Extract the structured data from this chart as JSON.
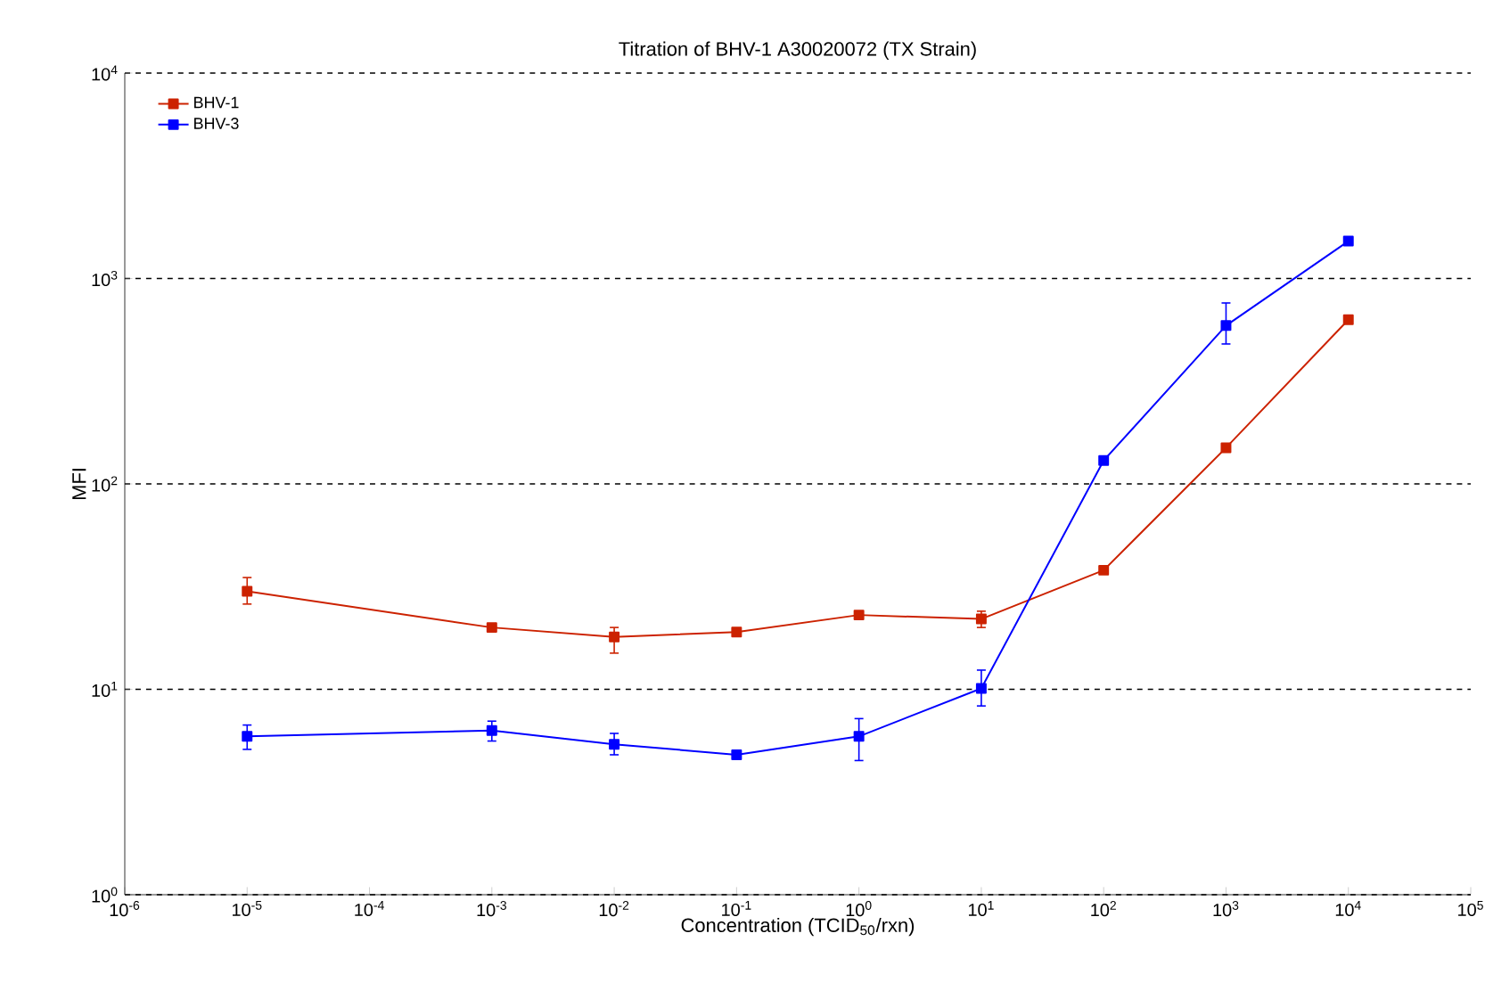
{
  "chart_data": {
    "type": "line",
    "title": "Titration of BHV-1 A30020072 (TX Strain)",
    "xlabel": "Concentration (TCID$_{50}$/rxn)",
    "ylabel": "MFI",
    "log": "xy",
    "grid": "y",
    "legend": "top left",
    "marker": "square",
    "line_style": "solid",
    "xlim": [
      1e-06,
      100000.0
    ],
    "ylim": [
      1,
      10000
    ],
    "xticks": [
      {
        "value": 1e-06,
        "label": "10$^{-6}$"
      },
      {
        "value": 1e-05,
        "label": "10$^{-5}$"
      },
      {
        "value": 0.0001,
        "label": "10$^{-4}$"
      },
      {
        "value": 0.001,
        "label": "10$^{-3}$"
      },
      {
        "value": 0.01,
        "label": "10$^{-2}$"
      },
      {
        "value": 0.1,
        "label": "10$^{-1}$"
      },
      {
        "value": 1,
        "label": "10$^{0}$"
      },
      {
        "value": 10,
        "label": "10$^{1}$"
      },
      {
        "value": 100,
        "label": "10$^{2}$"
      },
      {
        "value": 1000,
        "label": "10$^{3}$"
      },
      {
        "value": 10000,
        "label": "10$^{4}$"
      },
      {
        "value": 100000,
        "label": "10$^{5}$"
      }
    ],
    "yticks": [
      {
        "value": 1,
        "label": "10$^{0}$"
      },
      {
        "value": 10,
        "label": "10$^{1}$"
      },
      {
        "value": 100,
        "label": "10$^{2}$"
      },
      {
        "value": 1000,
        "label": "10$^{3}$"
      },
      {
        "value": 10000,
        "label": "10$^{4}$"
      }
    ],
    "x": [
      1e-05,
      0.001,
      0.01,
      0.1,
      1,
      10,
      100,
      1000,
      10000
    ],
    "series": [
      {
        "name": "BHV-1",
        "color": "#cc2200",
        "values": [
          30,
          20,
          18,
          19,
          23,
          22,
          38,
          150,
          630
        ],
        "errors": [
          [
            26,
            35
          ],
          null,
          [
            15,
            20
          ],
          null,
          null,
          [
            20,
            24
          ],
          null,
          null,
          null
        ]
      },
      {
        "name": "BHV-3",
        "color": "#0000ff",
        "values": [
          5.9,
          6.3,
          5.4,
          4.8,
          5.9,
          10.1,
          130,
          590,
          1520
        ],
        "errors": [
          [
            5.1,
            6.7
          ],
          [
            5.6,
            7.0
          ],
          [
            4.8,
            6.1
          ],
          null,
          [
            4.5,
            7.2
          ],
          [
            8.3,
            12.4
          ],
          null,
          [
            480,
            760
          ],
          null
        ]
      }
    ]
  }
}
